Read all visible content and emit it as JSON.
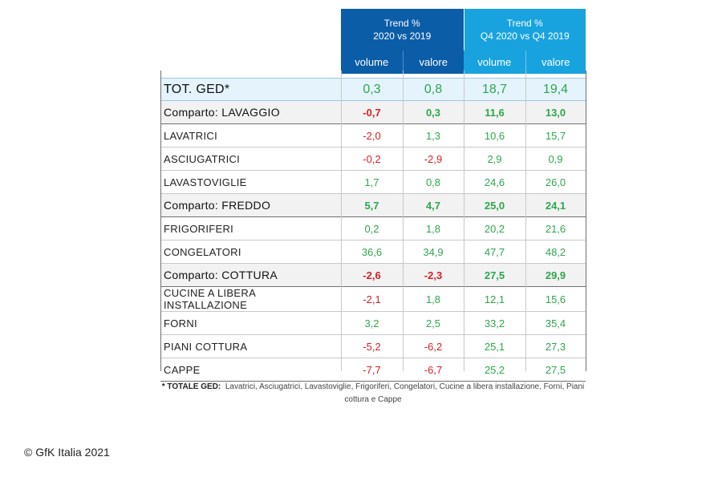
{
  "header": {
    "group1_line1": "Trend %",
    "group1_line2": "2020 vs 2019",
    "group2_line1": "Trend %",
    "group2_line2": "Q4 2020 vs Q4 2019",
    "col_volume": "volume",
    "col_valore": "valore"
  },
  "colors": {
    "header_dark": "#0b5da8",
    "header_light": "#18a3df",
    "positive": "#2ea64e",
    "negative": "#d61f26",
    "total_row_bg": "#e5f3fd"
  },
  "rows": [
    {
      "label": "TOT. GED*",
      "type": "total",
      "values": [
        "0,3",
        "0,8",
        "18,7",
        "19,4"
      ]
    },
    {
      "label": "Comparto: LAVAGGIO",
      "type": "sector",
      "values": [
        "-0,7",
        "0,3",
        "11,6",
        "13,0"
      ]
    },
    {
      "label": "LAVATRICI",
      "type": "item",
      "values": [
        "-2,0",
        "1,3",
        "10,6",
        "15,7"
      ]
    },
    {
      "label": "ASCIUGATRICI",
      "type": "item",
      "values": [
        "-0,2",
        "-2,9",
        "2,9",
        "0,9"
      ]
    },
    {
      "label": "LAVASTOVIGLIE",
      "type": "item",
      "values": [
        "1,7",
        "0,8",
        "24,6",
        "26,0"
      ]
    },
    {
      "label": "Comparto: FREDDO",
      "type": "sector",
      "values": [
        "5,7",
        "4,7",
        "25,0",
        "24,1"
      ]
    },
    {
      "label": "FRIGORIFERI",
      "type": "item",
      "values": [
        "0,2",
        "1,8",
        "20,2",
        "21,6"
      ]
    },
    {
      "label": "CONGELATORI",
      "type": "item",
      "values": [
        "36,6",
        "34,9",
        "47,7",
        "48,2"
      ]
    },
    {
      "label": "Comparto: COTTURA",
      "type": "sector",
      "values": [
        "-2,6",
        "-2,3",
        "27,5",
        "29,9"
      ]
    },
    {
      "label": "CUCINE A LIBERA INSTALLAZIONE",
      "type": "item",
      "values": [
        "-2,1",
        "1,8",
        "12,1",
        "15,6"
      ]
    },
    {
      "label": "FORNI",
      "type": "item",
      "values": [
        "3,2",
        "2,5",
        "33,2",
        "35,4"
      ]
    },
    {
      "label": "PIANI COTTURA",
      "type": "item",
      "values": [
        "-5,2",
        "-6,2",
        "25,1",
        "27,3"
      ]
    },
    {
      "label": "CAPPE",
      "type": "item",
      "values": [
        "-7,7",
        "-6,7",
        "25,2",
        "27,5"
      ]
    }
  ],
  "footnote": {
    "bold": "* TOTALE GED:",
    "text": "Lavatrici, Asciugatrici, Lavastoviglie, Frigoriferi, Congelatori, Cucine a libera installazione, Forni, Piani cottura e Cappe"
  },
  "copyright": "© GfK Italia 2021"
}
